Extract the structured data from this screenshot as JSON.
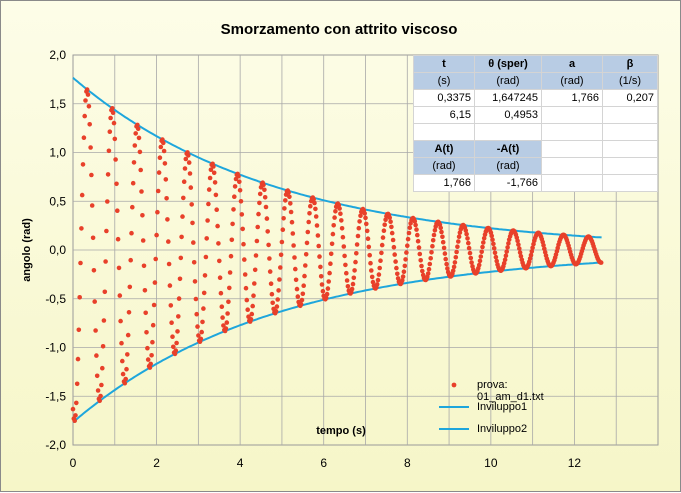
{
  "chart_data": {
    "type": "scatter",
    "title": "Smorzamento  con attrito viscoso",
    "xlabel": "tempo (s)",
    "ylabel": "angolo (rad)",
    "xlim": [
      0,
      14
    ],
    "ylim": [
      -2.0,
      2.0
    ],
    "x_ticks": [
      "0",
      "2",
      "4",
      "6",
      "8",
      "10",
      "12"
    ],
    "y_ticks": [
      "2,0",
      "1,5",
      "1,0",
      "0,5",
      "0,0",
      "-0,5",
      "-1,0",
      "-1,5",
      "-2,0"
    ],
    "grid": true,
    "series": [
      {
        "name": "prova: 01_am_d1.txt",
        "kind": "markers",
        "color": "#e8402a",
        "model": {
          "amplitude": 1.766,
          "beta": 0.207,
          "period": 0.6,
          "t0": 0.3375,
          "t_start": 0.0,
          "t_end": 12.65,
          "dt": 0.02
        }
      },
      {
        "name": "Inviluppo1",
        "kind": "line",
        "color": "#1ea6dc",
        "model": {
          "amplitude": 1.766,
          "beta": 0.207,
          "sign": 1,
          "t_start": 0.0,
          "t_end": 12.65
        }
      },
      {
        "name": "Inviluppo2",
        "kind": "line",
        "color": "#1ea6dc",
        "model": {
          "amplitude": 1.766,
          "beta": 0.207,
          "sign": -1,
          "t_start": 0.0,
          "t_end": 12.65
        }
      }
    ],
    "legend_position": "bottom-right"
  },
  "table": {
    "headers": [
      "t",
      "θ (sper)",
      "a",
      "β"
    ],
    "units": [
      "(s)",
      "(rad)",
      "(rad)",
      "(1/s)"
    ],
    "row1": [
      "0,3375",
      "1,647245",
      "1,766",
      "0,207"
    ],
    "row2": [
      "6,15",
      "0,4953",
      "",
      ""
    ],
    "env_headers": [
      "A(t)",
      "-A(t)"
    ],
    "env_units": [
      "(rad)",
      "(rad)"
    ],
    "env_row": [
      "1,766",
      "-1,766"
    ]
  }
}
